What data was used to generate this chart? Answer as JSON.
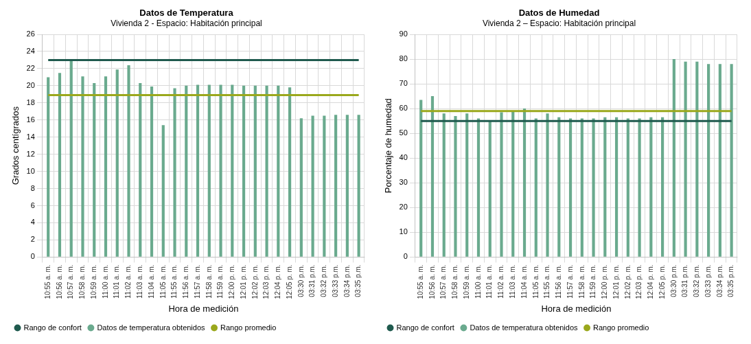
{
  "chart_data": [
    {
      "type": "bar",
      "title": "Datos de Temperatura",
      "subtitle": "Vivienda 2 - Espacio: Habitación principal",
      "xlabel": "Hora de medición",
      "ylabel": "Grados centígrados",
      "categories": [
        "10:55 a. m.",
        "10:56 a. m.",
        "10:57 a. m.",
        "10:58 a. m.",
        "10:59 a. m.",
        "11:00 a. m.",
        "11:01 a. m.",
        "11:02 a. m.",
        "11:03 a. m.",
        "11:04 a. m.",
        "11:05 a. m.",
        "11:55 a. m.",
        "11:56 a. m.",
        "11:57 a. m.",
        "11:58 a. m.",
        "11:59 a. m.",
        "12:00 p. m.",
        "12:01 p. m.",
        "12:02 p. m.",
        "12:03 p. m.",
        "12:04 p. m.",
        "12:05 p. m.",
        "03:30 p.m.",
        "03:31 p.m.",
        "03:32 p.m.",
        "03:33 p.m.",
        "03:34 p.m.",
        "03:35 p.m."
      ],
      "series": [
        {
          "name": "Rango de confort",
          "type": "line",
          "color": "#1f5a4e",
          "values": [
            23,
            23,
            23,
            23,
            23,
            23,
            23,
            23,
            23,
            23,
            23,
            23,
            23,
            23,
            23,
            23,
            23,
            23,
            23,
            23,
            23,
            23,
            23,
            23,
            23,
            23,
            23,
            23
          ]
        },
        {
          "name": "Datos de temperatura obtenidos",
          "color": "#6aaa8e",
          "values": [
            21,
            21.5,
            23,
            21.1,
            20.3,
            21.1,
            21.9,
            22.4,
            20.3,
            19.9,
            15.4,
            19.7,
            20,
            20.1,
            20.1,
            20.1,
            20.1,
            20,
            20,
            20,
            20,
            19.8,
            16.2,
            16.5,
            16.5,
            16.6,
            16.6,
            16.6
          ]
        },
        {
          "name": "Rango promedio",
          "type": "line",
          "color": "#9aa81c",
          "values": [
            18.9,
            18.9,
            18.9,
            18.9,
            18.9,
            18.9,
            18.9,
            18.9,
            18.9,
            18.9,
            18.9,
            18.9,
            18.9,
            18.9,
            18.9,
            18.9,
            18.9,
            18.9,
            18.9,
            18.9,
            18.9,
            18.9,
            18.9,
            18.9,
            18.9,
            18.9,
            18.9,
            18.9
          ]
        }
      ],
      "ylim": [
        0,
        26
      ],
      "yticks": [
        0,
        2,
        4,
        6,
        8,
        10,
        12,
        14,
        16,
        18,
        20,
        22,
        24,
        26
      ],
      "grid": true,
      "legend": "bottom left",
      "marker": "none"
    },
    {
      "type": "bar",
      "title": "Datos de Humedad",
      "subtitle": "Vivienda 2 – Espacio: Habitación principal",
      "xlabel": "Hora de medición",
      "ylabel": "Porcentaje de humedad",
      "categories": [
        "10:55 a. m.",
        "10:56 a. m.",
        "10:57 a. m.",
        "10:58 a. m.",
        "10:59 a. m.",
        "11:00 a. m.",
        "11:01 a. m.",
        "11:02 a. m.",
        "11:03 a. m.",
        "11:04 a. m.",
        "11:05 a. m.",
        "11:55 a. m.",
        "11:56 a. m.",
        "11:57 a. m.",
        "11:58 a. m.",
        "11:59 a. m.",
        "12:00 p. m.",
        "12:01 p. m.",
        "12:02 p. m.",
        "12:03 p. m.",
        "12:04 p. m.",
        "12:05 p. m.",
        "03:30 p.m.",
        "03:31 p.m.",
        "03:32 p.m.",
        "03:33 p.m.",
        "03:34 p.m.",
        "03:35 p.m."
      ],
      "series": [
        {
          "name": "Rango de confort",
          "type": "line",
          "color": "#1f5a4e",
          "values": [
            55,
            55,
            55,
            55,
            55,
            55,
            55,
            55,
            55,
            55,
            55,
            55,
            55,
            55,
            55,
            55,
            55,
            55,
            55,
            55,
            55,
            55,
            55,
            55,
            55,
            55,
            55,
            55
          ]
        },
        {
          "name": "Datos de temperatura obtenidos",
          "color": "#6aaa8e",
          "values": [
            63.5,
            65,
            58,
            57,
            58,
            56,
            55,
            58.5,
            59,
            60,
            56,
            58,
            56.5,
            56,
            56,
            56,
            56.5,
            56.5,
            56,
            56,
            56.5,
            56.5,
            80,
            79,
            79,
            78,
            78,
            78
          ]
        },
        {
          "name": "Rango promedio",
          "type": "line",
          "color": "#9aa81c",
          "values": [
            59,
            59,
            59,
            59,
            59,
            59,
            59,
            59,
            59,
            59,
            59,
            59,
            59,
            59,
            59,
            59,
            59,
            59,
            59,
            59,
            59,
            59,
            59,
            59,
            59,
            59,
            59,
            59
          ]
        }
      ],
      "ylim": [
        0,
        90
      ],
      "yticks": [
        0,
        10,
        20,
        30,
        40,
        50,
        60,
        70,
        80,
        90
      ],
      "grid": true,
      "legend": "bottom left",
      "marker": "none"
    }
  ]
}
